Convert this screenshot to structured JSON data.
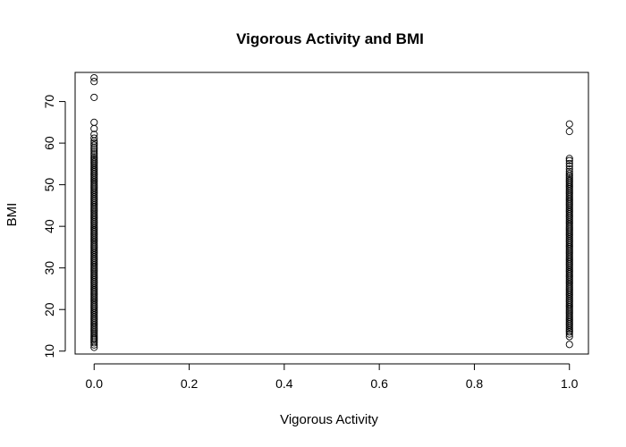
{
  "chart_data": {
    "type": "scatter",
    "title": "Vigorous Activity and BMI",
    "xlabel": "Vigorous Activity",
    "ylabel": "BMI",
    "xlim": [
      -0.04,
      1.04
    ],
    "ylim": [
      9.3,
      77
    ],
    "x_ticks": [
      0.0,
      0.2,
      0.4,
      0.6,
      0.8,
      1.0
    ],
    "x_tick_labels": [
      "0.0",
      "0.2",
      "0.4",
      "0.6",
      "0.8",
      "1.0"
    ],
    "y_ticks": [
      10,
      20,
      30,
      40,
      50,
      60,
      70
    ],
    "y_tick_labels": [
      "10",
      "20",
      "30",
      "40",
      "50",
      "60",
      "70"
    ],
    "grid": false,
    "legend": "none",
    "series": [
      {
        "x_value": 0,
        "values": [
          10.9,
          11.5,
          12.0,
          12.4,
          12.8,
          13.1,
          13.5,
          13.9,
          14.3,
          14.7,
          15.1,
          15.5,
          15.9,
          16.3,
          16.7,
          17.1,
          17.5,
          17.9,
          18.3,
          18.7,
          19.1,
          19.5,
          19.9,
          20.3,
          20.7,
          21.1,
          21.5,
          21.9,
          22.3,
          22.7,
          23.1,
          23.5,
          23.9,
          24.3,
          24.7,
          25.1,
          25.5,
          25.9,
          26.3,
          26.7,
          27.1,
          27.5,
          27.9,
          28.3,
          28.7,
          29.1,
          29.5,
          29.9,
          30.3,
          30.7,
          31.1,
          31.5,
          31.9,
          32.3,
          32.7,
          33.1,
          33.5,
          33.9,
          34.3,
          34.7,
          35.1,
          35.5,
          35.9,
          36.3,
          36.7,
          37.1,
          37.5,
          37.9,
          38.3,
          38.7,
          39.1,
          39.5,
          39.9,
          40.3,
          40.7,
          41.1,
          41.5,
          41.9,
          42.3,
          42.7,
          43.1,
          43.5,
          43.9,
          44.3,
          44.7,
          45.1,
          45.5,
          45.9,
          46.3,
          46.7,
          47.1,
          47.5,
          47.9,
          48.3,
          48.7,
          49.1,
          49.5,
          49.9,
          50.3,
          50.7,
          51.1,
          51.5,
          51.9,
          52.3,
          52.7,
          53.1,
          53.5,
          53.9,
          54.3,
          54.7,
          55.1,
          55.5,
          55.9,
          56.3,
          56.7,
          57.2,
          57.6,
          58.1,
          58.6,
          59.0,
          59.5,
          60.0,
          60.5,
          61.2,
          62.1,
          63.5,
          65.0,
          71.0,
          74.8,
          75.7
        ]
      },
      {
        "x_value": 1,
        "values": [
          11.6,
          13.5,
          14.1,
          14.6,
          15.0,
          15.4,
          15.8,
          16.2,
          16.6,
          17.0,
          17.4,
          17.8,
          18.2,
          18.6,
          19.0,
          19.4,
          19.8,
          20.2,
          20.6,
          21.0,
          21.4,
          21.8,
          22.2,
          22.6,
          23.0,
          23.4,
          23.8,
          24.2,
          24.6,
          25.0,
          25.4,
          25.8,
          26.2,
          26.6,
          27.0,
          27.4,
          27.8,
          28.2,
          28.6,
          29.0,
          29.4,
          29.8,
          30.2,
          30.6,
          31.0,
          31.4,
          31.8,
          32.2,
          32.6,
          33.0,
          33.4,
          33.8,
          34.2,
          34.6,
          35.0,
          35.4,
          35.8,
          36.2,
          36.6,
          37.0,
          37.4,
          37.8,
          38.2,
          38.6,
          39.0,
          39.4,
          39.8,
          40.2,
          40.6,
          41.0,
          41.4,
          41.8,
          42.2,
          42.6,
          43.0,
          43.4,
          43.8,
          44.2,
          44.6,
          45.0,
          45.4,
          45.8,
          46.2,
          46.6,
          47.0,
          47.4,
          47.8,
          48.2,
          48.6,
          49.0,
          49.4,
          49.8,
          50.2,
          50.6,
          51.0,
          51.4,
          51.8,
          52.2,
          52.7,
          53.2,
          53.8,
          54.5,
          55.1,
          55.8,
          56.3,
          62.8,
          64.6
        ]
      }
    ]
  }
}
